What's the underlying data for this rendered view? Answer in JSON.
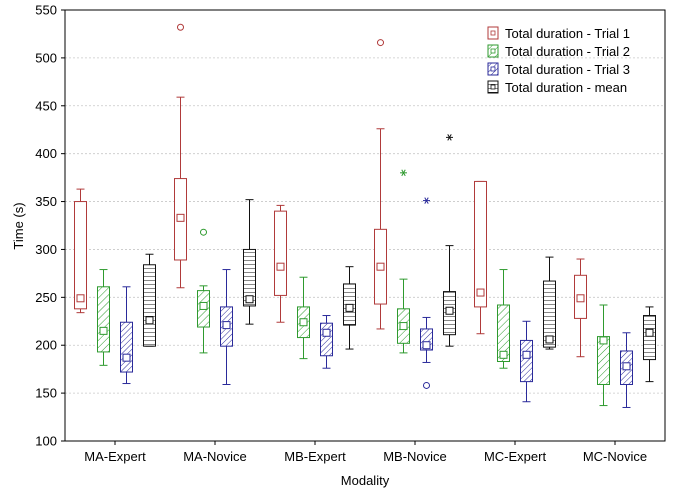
{
  "chart_data": {
    "type": "box",
    "title": "",
    "xlabel": "Modality",
    "ylabel": "Time (s)",
    "ylim": [
      100,
      550
    ],
    "yticks": [
      100,
      150,
      200,
      250,
      300,
      350,
      400,
      450,
      500,
      550
    ],
    "grid": true,
    "legend_position": "top-right",
    "categories": [
      "MA-Expert",
      "MA-Novice",
      "MB-Expert",
      "MB-Novice",
      "MC-Expert",
      "MC-Novice"
    ],
    "series": [
      {
        "name": "Total duration - Trial 1",
        "color": "#b03a3a",
        "pattern": "none",
        "boxes": [
          {
            "min": 234,
            "q1": 238,
            "median": 249,
            "q3": 350,
            "max": 363,
            "outliers": []
          },
          {
            "min": 260,
            "q1": 289,
            "median": 333,
            "q3": 374,
            "max": 459,
            "outliers": [
              532
            ]
          },
          {
            "min": 224,
            "q1": 252,
            "median": 282,
            "q3": 340,
            "max": 346,
            "outliers": []
          },
          {
            "min": 217,
            "q1": 243,
            "median": 282,
            "q3": 321,
            "max": 426,
            "outliers": [
              516
            ]
          },
          {
            "min": 212,
            "q1": 240,
            "median": 255,
            "q3": 371,
            "max": 371,
            "outliers": []
          },
          {
            "min": 188,
            "q1": 228,
            "median": 249,
            "q3": 273,
            "max": 290,
            "outliers": []
          }
        ]
      },
      {
        "name": "Total duration - Trial 2",
        "color": "#2e9a2e",
        "pattern": "diagonal",
        "boxes": [
          {
            "min": 179,
            "q1": 193,
            "median": 215,
            "q3": 261,
            "max": 279,
            "outliers": []
          },
          {
            "min": 192,
            "q1": 219,
            "median": 241,
            "q3": 257,
            "max": 262,
            "outliers": [
              318
            ]
          },
          {
            "min": 186,
            "q1": 208,
            "median": 224,
            "q3": 240,
            "max": 271,
            "outliers": []
          },
          {
            "min": 192,
            "q1": 202,
            "median": 220,
            "q3": 238,
            "max": 269,
            "outliers": [
              380
            ]
          },
          {
            "min": 176,
            "q1": 183,
            "median": 190,
            "q3": 242,
            "max": 279,
            "outliers": []
          },
          {
            "min": 137,
            "q1": 159,
            "median": 205,
            "q3": 209,
            "max": 242,
            "outliers": []
          }
        ]
      },
      {
        "name": "Total duration - Trial 3",
        "color": "#2a2a9a",
        "pattern": "diagonal-dense",
        "boxes": [
          {
            "min": 160,
            "q1": 172,
            "median": 187,
            "q3": 224,
            "max": 261,
            "outliers": []
          },
          {
            "min": 159,
            "q1": 199,
            "median": 221,
            "q3": 240,
            "max": 279,
            "outliers": []
          },
          {
            "min": 176,
            "q1": 189,
            "median": 213,
            "q3": 223,
            "max": 231,
            "outliers": []
          },
          {
            "min": 182,
            "q1": 195,
            "median": 200,
            "q3": 217,
            "max": 229,
            "outliers": [
              158,
              351
            ]
          },
          {
            "min": 141,
            "q1": 162,
            "median": 190,
            "q3": 205,
            "max": 225,
            "outliers": []
          },
          {
            "min": 135,
            "q1": 159,
            "median": 178,
            "q3": 194,
            "max": 213,
            "outliers": []
          }
        ]
      },
      {
        "name": "Total duration - mean",
        "color": "#111111",
        "pattern": "horizontal",
        "boxes": [
          {
            "min": 199,
            "q1": 199,
            "median": 226,
            "q3": 284,
            "max": 295,
            "outliers": []
          },
          {
            "min": 222,
            "q1": 241,
            "median": 248,
            "q3": 300,
            "max": 352,
            "outliers": []
          },
          {
            "min": 196,
            "q1": 221,
            "median": 239,
            "q3": 264,
            "max": 282,
            "outliers": []
          },
          {
            "min": 199,
            "q1": 211,
            "median": 236,
            "q3": 256,
            "max": 304,
            "outliers": [
              417
            ]
          },
          {
            "min": 196,
            "q1": 198,
            "median": 206,
            "q3": 267,
            "max": 292,
            "outliers": []
          },
          {
            "min": 162,
            "q1": 185,
            "median": 213,
            "q3": 231,
            "max": 240,
            "outliers": []
          }
        ]
      }
    ]
  }
}
